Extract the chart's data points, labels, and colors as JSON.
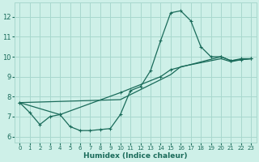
{
  "xlabel": "Humidex (Indice chaleur)",
  "bg_color": "#cef0e8",
  "grid_color": "#a8d8ce",
  "line_color": "#1a6b5a",
  "xlim": [
    -0.5,
    23.5
  ],
  "ylim": [
    5.7,
    12.7
  ],
  "yticks": [
    6,
    7,
    8,
    9,
    10,
    11,
    12
  ],
  "xticks": [
    0,
    1,
    2,
    3,
    4,
    5,
    6,
    7,
    8,
    9,
    10,
    11,
    12,
    13,
    14,
    15,
    16,
    17,
    18,
    19,
    20,
    21,
    22,
    23
  ],
  "series1_x": [
    0,
    1,
    2,
    3,
    4,
    5,
    6,
    7,
    8,
    9,
    10,
    11,
    12,
    13,
    14,
    15,
    16,
    17,
    18,
    19,
    20,
    21,
    22,
    23
  ],
  "series1_y": [
    7.7,
    7.2,
    6.6,
    7.0,
    7.1,
    6.5,
    6.3,
    6.3,
    6.35,
    6.4,
    7.1,
    8.3,
    8.5,
    9.3,
    10.8,
    12.2,
    12.3,
    11.8,
    10.5,
    10.0,
    10.0,
    9.8,
    9.9,
    9.9
  ],
  "series2_x": [
    0,
    4,
    10,
    14,
    15,
    20,
    21,
    22,
    23
  ],
  "series2_y": [
    7.7,
    7.1,
    8.2,
    9.0,
    9.35,
    10.0,
    9.8,
    9.85,
    9.9
  ],
  "series3_x": [
    0,
    10,
    15,
    16,
    20,
    21,
    22,
    23
  ],
  "series3_y": [
    7.7,
    7.85,
    9.1,
    9.5,
    9.9,
    9.75,
    9.85,
    9.9
  ]
}
